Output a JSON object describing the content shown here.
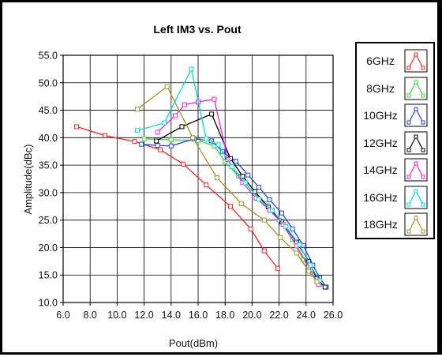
{
  "chart_data": {
    "type": "line",
    "title": "Left IM3 vs. Pout",
    "xlabel": "Pout(dBm)",
    "ylabel": "Amplitude(dBc)",
    "xlim": [
      6.0,
      26.0
    ],
    "ylim": [
      10.0,
      55.0
    ],
    "xticks": [
      "6.0",
      "8.0",
      "10.0",
      "12.0",
      "14.0",
      "16.0",
      "18.0",
      "20.0",
      "22.0",
      "24.0",
      "26.0"
    ],
    "yticks": [
      "10.0",
      "15.0",
      "20.0",
      "25.0",
      "30.0",
      "35.0",
      "40.0",
      "45.0",
      "50.0",
      "55.0"
    ],
    "grid": true,
    "legend_position": "right",
    "series": [
      {
        "name": "6GHz",
        "color": "#ff2020",
        "points": [
          [
            7.0,
            42.0
          ],
          [
            9.1,
            40.4
          ],
          [
            11.3,
            39.3
          ],
          [
            13.2,
            37.8
          ],
          [
            14.9,
            35.2
          ],
          [
            16.6,
            31.4
          ],
          [
            18.4,
            27.5
          ],
          [
            19.9,
            23.4
          ],
          [
            20.9,
            19.4
          ],
          [
            21.9,
            16.2
          ]
        ]
      },
      {
        "name": "8GHz",
        "color": "#33dd33",
        "points": [
          [
            12.0,
            39.8
          ],
          [
            14.0,
            39.6
          ],
          [
            16.0,
            39.5
          ],
          [
            17.2,
            38.5
          ],
          [
            18.0,
            35.6
          ],
          [
            19.0,
            33.0
          ],
          [
            20.0,
            30.3
          ],
          [
            21.0,
            28.0
          ],
          [
            22.0,
            25.0
          ],
          [
            23.0,
            21.5
          ],
          [
            23.8,
            17.8
          ],
          [
            24.5,
            15.2
          ],
          [
            25.0,
            13.3
          ]
        ]
      },
      {
        "name": "10GHz",
        "color": "#2244ee",
        "points": [
          [
            11.8,
            38.8
          ],
          [
            13.0,
            38.6
          ],
          [
            14.0,
            38.5
          ],
          [
            15.7,
            39.8
          ],
          [
            17.0,
            39.4
          ],
          [
            17.8,
            37.5
          ],
          [
            18.8,
            35.7
          ],
          [
            19.7,
            33.2
          ],
          [
            20.5,
            31.0
          ],
          [
            21.3,
            28.7
          ],
          [
            22.2,
            26.3
          ],
          [
            23.0,
            23.4
          ],
          [
            23.8,
            20.4
          ],
          [
            24.5,
            16.8
          ],
          [
            25.0,
            14.5
          ],
          [
            25.5,
            12.8
          ]
        ]
      },
      {
        "name": "12GHz",
        "color": "#000000",
        "points": [
          [
            12.9,
            39.4
          ],
          [
            14.8,
            42.0
          ],
          [
            17.0,
            44.3
          ],
          [
            18.4,
            36.2
          ],
          [
            19.3,
            33.0
          ],
          [
            20.2,
            30.2
          ],
          [
            21.2,
            27.4
          ],
          [
            22.2,
            24.7
          ],
          [
            23.3,
            21.0
          ],
          [
            24.2,
            17.5
          ],
          [
            24.8,
            14.3
          ],
          [
            25.4,
            12.8
          ]
        ]
      },
      {
        "name": "14GHz",
        "color": "#ee22ee",
        "points": [
          [
            13.0,
            41.0
          ],
          [
            14.3,
            44.0
          ],
          [
            15.0,
            46.0
          ],
          [
            16.0,
            46.5
          ],
          [
            17.2,
            47.0
          ],
          [
            18.2,
            36.0
          ],
          [
            19.3,
            31.8
          ],
          [
            20.3,
            29.0
          ],
          [
            21.3,
            26.8
          ],
          [
            22.3,
            24.2
          ],
          [
            23.3,
            20.3
          ],
          [
            24.2,
            16.5
          ],
          [
            24.9,
            13.3
          ]
        ]
      },
      {
        "name": "16GHz",
        "color": "#00dddd",
        "points": [
          [
            11.5,
            41.3
          ],
          [
            13.5,
            42.7
          ],
          [
            15.5,
            52.5
          ],
          [
            16.6,
            39.8
          ],
          [
            17.5,
            38.7
          ],
          [
            18.5,
            34.7
          ],
          [
            19.5,
            31.8
          ],
          [
            20.5,
            28.8
          ],
          [
            21.5,
            26.8
          ],
          [
            22.5,
            23.8
          ],
          [
            23.5,
            20.5
          ],
          [
            24.3,
            16.8
          ],
          [
            25.0,
            14.0
          ]
        ]
      },
      {
        "name": "18GHz",
        "color": "#9a9a20",
        "points": [
          [
            11.5,
            45.2
          ],
          [
            13.7,
            49.3
          ],
          [
            15.6,
            40.0
          ],
          [
            17.4,
            32.7
          ],
          [
            19.2,
            28.0
          ],
          [
            20.9,
            25.0
          ],
          [
            22.1,
            21.8
          ],
          [
            23.3,
            19.0
          ],
          [
            24.2,
            15.7
          ],
          [
            24.8,
            13.8
          ]
        ]
      }
    ]
  }
}
